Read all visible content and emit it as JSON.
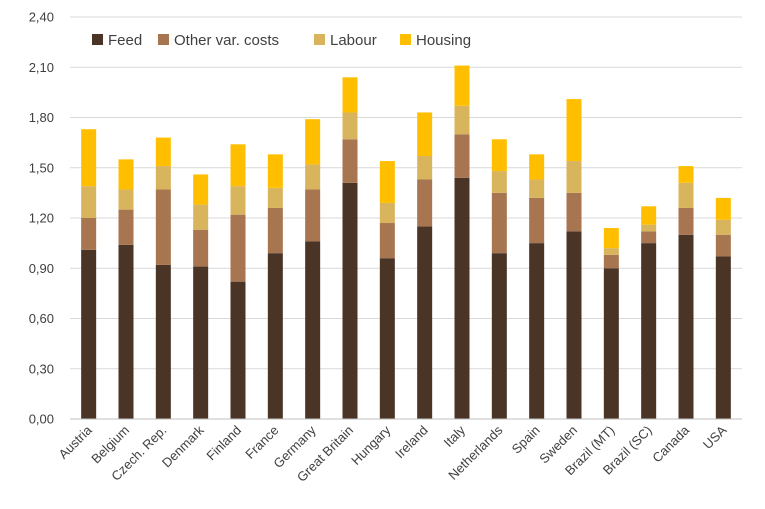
{
  "chart_data": {
    "type": "bar",
    "stacked": true,
    "title": "",
    "xlabel": "",
    "ylabel": "",
    "ylim": [
      0,
      2.4
    ],
    "yticks": [
      "0,00",
      "0,30",
      "0,60",
      "0,90",
      "1,20",
      "1,50",
      "1,80",
      "2,10",
      "2,40"
    ],
    "grid": true,
    "legend_position": "top-left",
    "categories": [
      "Austria",
      "Belgium",
      "Czech. Rep.",
      "Denmark",
      "Finland",
      "France",
      "Germany",
      "Great Britain",
      "Hungary",
      "Ireland",
      "Italy",
      "Netherlands",
      "Spain",
      "Sweden",
      "Brazil (MT)",
      "Brazil (SC)",
      "Canada",
      "USA"
    ],
    "series": [
      {
        "name": "Feed",
        "color": "#4a3425",
        "values": [
          1.01,
          1.04,
          0.92,
          0.91,
          0.82,
          0.99,
          1.06,
          1.41,
          0.96,
          1.15,
          1.44,
          0.99,
          1.05,
          1.12,
          0.9,
          1.05,
          1.1,
          0.97
        ]
      },
      {
        "name": "Other var. costs",
        "color": "#a87551",
        "values": [
          0.19,
          0.21,
          0.45,
          0.22,
          0.4,
          0.27,
          0.31,
          0.26,
          0.21,
          0.28,
          0.26,
          0.36,
          0.27,
          0.23,
          0.08,
          0.07,
          0.16,
          0.13
        ]
      },
      {
        "name": "Labour",
        "color": "#d8b45d",
        "values": [
          0.19,
          0.12,
          0.14,
          0.15,
          0.17,
          0.12,
          0.15,
          0.16,
          0.12,
          0.14,
          0.17,
          0.13,
          0.11,
          0.19,
          0.04,
          0.04,
          0.15,
          0.09
        ]
      },
      {
        "name": "Housing",
        "color": "#ffbf00",
        "values": [
          0.34,
          0.18,
          0.17,
          0.18,
          0.25,
          0.2,
          0.27,
          0.21,
          0.25,
          0.26,
          0.24,
          0.19,
          0.15,
          0.37,
          0.12,
          0.11,
          0.1,
          0.13
        ]
      }
    ]
  }
}
